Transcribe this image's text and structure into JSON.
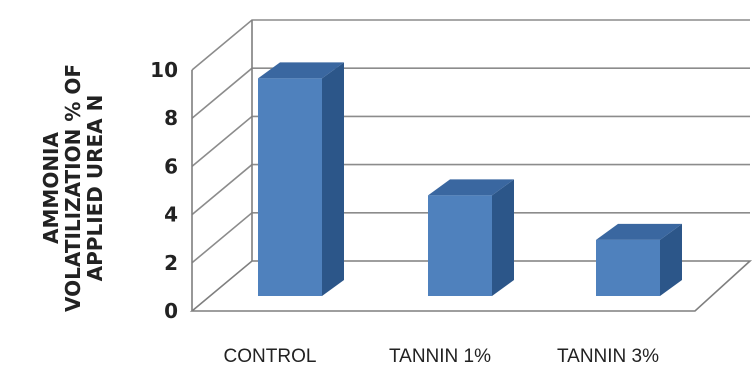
{
  "chart_data": {
    "type": "bar",
    "title": "",
    "xlabel": "",
    "ylabel_lines": [
      "AMMONIA",
      "VOLATILIZATION % OF",
      "APPLIED UREA N"
    ],
    "categories": [
      "CONTROL",
      "TANNIN 1%",
      "TANNIN 3%"
    ],
    "values": [
      9.3,
      4.3,
      2.4
    ],
    "ylim": [
      0,
      10
    ],
    "yticks": [
      "0",
      "2",
      "4",
      "6",
      "8",
      "10"
    ],
    "grid": true,
    "legend": "none",
    "style": "3d-column",
    "colors": {
      "front": "#4f81bd",
      "side": "#2c5689",
      "top": "#3a67a0",
      "grid": "#8c8c8c"
    }
  }
}
